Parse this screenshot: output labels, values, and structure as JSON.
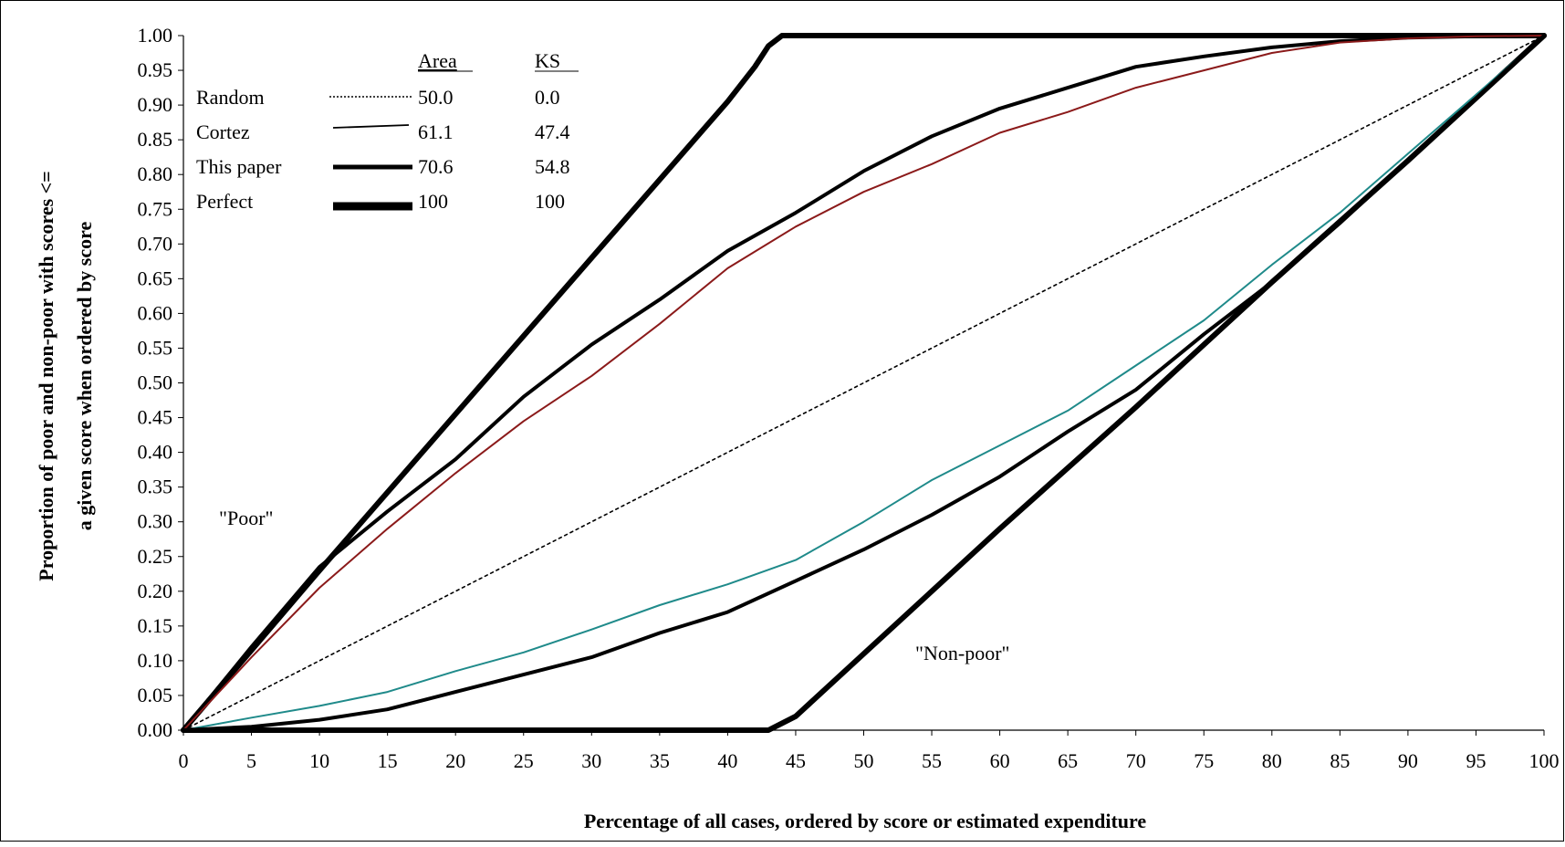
{
  "chart_data": {
    "type": "line",
    "title": "",
    "xlabel": "Percentage of all cases, ordered by score or estimated expenditure",
    "ylabel_line1": "Proportion of poor and non-poor with scores <=",
    "ylabel_line2": "a given score when ordered by score",
    "xlim": [
      0,
      100
    ],
    "ylim": [
      0,
      1
    ],
    "x_ticks": [
      "0",
      "5",
      "10",
      "15",
      "20",
      "25",
      "30",
      "35",
      "40",
      "45",
      "50",
      "55",
      "60",
      "65",
      "70",
      "75",
      "80",
      "85",
      "90",
      "95",
      "100"
    ],
    "y_ticks": [
      "0.00",
      "0.05",
      "0.10",
      "0.15",
      "0.20",
      "0.25",
      "0.30",
      "0.35",
      "0.40",
      "0.45",
      "0.50",
      "0.55",
      "0.60",
      "0.65",
      "0.70",
      "0.75",
      "0.80",
      "0.85",
      "0.90",
      "0.95",
      "1.00"
    ],
    "grid": false,
    "legend": {
      "placement": "top-left",
      "header_area": "Area",
      "header_ks": "KS",
      "rows": [
        {
          "name": "Random",
          "area": "50.0",
          "ks": "0.0",
          "style": "dotted"
        },
        {
          "name": "Cortez",
          "area": "61.1",
          "ks": "47.4",
          "style": "thin"
        },
        {
          "name": "This paper",
          "area": "70.6",
          "ks": "54.8",
          "style": "medium"
        },
        {
          "name": "Perfect",
          "area": "100",
          "ks": "100",
          "style": "thick"
        }
      ]
    },
    "annotations": {
      "poor": "\"Poor\"",
      "nonpoor": "\"Non-poor\""
    },
    "colors": {
      "cortez_poor": "#8b1a1a",
      "cortez_nonpoor": "#1f8a8a",
      "this_paper": "#000000",
      "perfect": "#000000",
      "random": "#000000"
    },
    "series": [
      {
        "role": "random",
        "x": [
          0,
          100
        ],
        "y": [
          0,
          1
        ]
      },
      {
        "role": "perfect-poor",
        "x": [
          0,
          10,
          20,
          30,
          40,
          42,
          43,
          44,
          50,
          100
        ],
        "y": [
          0,
          0.23,
          0.455,
          0.68,
          0.905,
          0.955,
          0.985,
          1.0,
          1.0,
          1.0
        ]
      },
      {
        "role": "perfect-nonpoor",
        "x": [
          0,
          40,
          43,
          44,
          45,
          50,
          60,
          70,
          80,
          90,
          100
        ],
        "y": [
          0,
          0,
          0,
          0.01,
          0.02,
          0.11,
          0.29,
          0.465,
          0.645,
          0.82,
          1.0
        ]
      },
      {
        "role": "this-paper-poor",
        "x": [
          0,
          5,
          10,
          15,
          20,
          25,
          30,
          35,
          40,
          45,
          50,
          55,
          60,
          65,
          70,
          75,
          80,
          85,
          90,
          95,
          100
        ],
        "y": [
          0,
          0.12,
          0.235,
          0.315,
          0.39,
          0.48,
          0.555,
          0.62,
          0.69,
          0.745,
          0.805,
          0.855,
          0.895,
          0.925,
          0.955,
          0.97,
          0.983,
          0.992,
          0.997,
          0.999,
          1.0
        ]
      },
      {
        "role": "cortez-poor",
        "x": [
          0,
          5,
          10,
          15,
          20,
          25,
          30,
          35,
          40,
          45,
          50,
          55,
          60,
          65,
          70,
          75,
          80,
          85,
          90,
          95,
          100
        ],
        "y": [
          0,
          0.105,
          0.205,
          0.29,
          0.37,
          0.445,
          0.51,
          0.585,
          0.665,
          0.725,
          0.775,
          0.815,
          0.86,
          0.89,
          0.925,
          0.95,
          0.975,
          0.99,
          0.996,
          0.999,
          1.0
        ]
      },
      {
        "role": "cortez-nonpoor",
        "x": [
          0,
          5,
          10,
          15,
          20,
          25,
          30,
          35,
          40,
          45,
          50,
          55,
          60,
          65,
          70,
          75,
          80,
          85,
          90,
          95,
          100
        ],
        "y": [
          0,
          0.018,
          0.035,
          0.055,
          0.085,
          0.112,
          0.145,
          0.18,
          0.21,
          0.245,
          0.3,
          0.36,
          0.41,
          0.46,
          0.525,
          0.59,
          0.67,
          0.745,
          0.83,
          0.915,
          1.0
        ]
      },
      {
        "role": "this-paper-nonpoor",
        "x": [
          0,
          5,
          10,
          15,
          20,
          25,
          30,
          35,
          40,
          45,
          50,
          55,
          60,
          65,
          70,
          75,
          80,
          85,
          90,
          95,
          100
        ],
        "y": [
          0,
          0.005,
          0.015,
          0.03,
          0.055,
          0.08,
          0.105,
          0.14,
          0.17,
          0.215,
          0.26,
          0.31,
          0.365,
          0.43,
          0.49,
          0.57,
          0.645,
          0.73,
          0.82,
          0.91,
          1.0
        ]
      }
    ]
  }
}
